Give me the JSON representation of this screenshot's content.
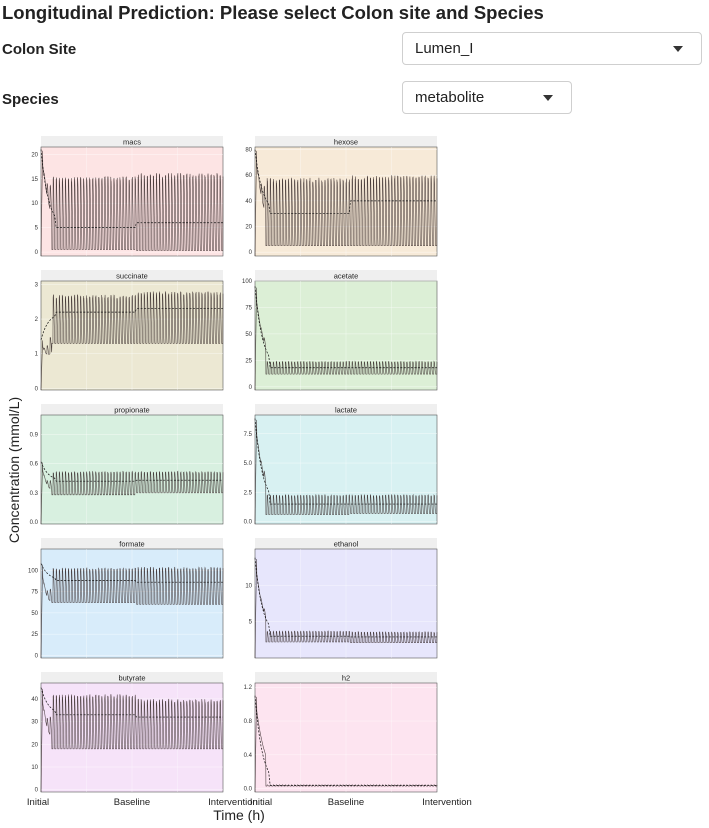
{
  "header": {
    "title": "Longitudinal Prediction: Please select Colon site and Species"
  },
  "controls": {
    "colon_site": {
      "label": "Colon Site",
      "value": "Lumen_I"
    },
    "species": {
      "label": "Species",
      "value": "metabolite"
    }
  },
  "chart_data": {
    "type": "line",
    "facet_layout": "5 rows x 2 columns",
    "ylabel": "Concentration (mmol/L)",
    "xlabel": "Time (h)",
    "x_ticks": [
      "Initial",
      "Baseline",
      "Intervention"
    ],
    "grid": true,
    "panels": [
      {
        "name": "macs",
        "bg": "#fde4e4",
        "yticks": [
          "0",
          "5",
          "10",
          "15",
          "20"
        ],
        "ylim": [
          -0.8,
          21.5
        ],
        "profile": {
          "init_peak": 21,
          "pre_high": 15.5,
          "pre_low": 0.5,
          "pre_mid": 5,
          "post_high": 16.2,
          "post_low": 0.3,
          "post_mid": 6
        }
      },
      {
        "name": "hexose",
        "bg": "#f7ead8",
        "yticks": [
          "0",
          "20",
          "40",
          "60",
          "80"
        ],
        "ylim": [
          -3,
          82
        ],
        "profile": {
          "init_peak": 80,
          "pre_high": 58,
          "pre_low": 5,
          "pre_mid": 30,
          "post_high": 60,
          "post_low": 5,
          "post_mid": 40
        }
      },
      {
        "name": "succinate",
        "bg": "#ece8d3",
        "yticks": [
          "0",
          "1",
          "2",
          "3"
        ],
        "ylim": [
          -0.05,
          3.1
        ],
        "profile": {
          "init_peak": 1.4,
          "pre_high": 2.7,
          "pre_low": 1.3,
          "pre_mid": 2.2,
          "post_high": 2.8,
          "post_low": 1.3,
          "post_mid": 2.3
        }
      },
      {
        "name": "acetate",
        "bg": "#dcefd6",
        "yticks": [
          "0",
          "25",
          "50",
          "75",
          "100"
        ],
        "ylim": [
          -3,
          100
        ],
        "profile": {
          "init_peak": 95,
          "pre_high": 24,
          "pre_low": 12,
          "pre_mid": 18,
          "post_high": 24,
          "post_low": 12,
          "post_mid": 18
        }
      },
      {
        "name": "propionate",
        "bg": "#d8f0e0",
        "yticks": [
          "0.0",
          "0.3",
          "0.6",
          "0.9"
        ],
        "ylim": [
          -0.02,
          1.1
        ],
        "profile": {
          "init_peak": 0.62,
          "pre_high": 0.52,
          "pre_low": 0.28,
          "pre_mid": 0.42,
          "post_high": 0.52,
          "post_low": 0.3,
          "post_mid": 0.43
        }
      },
      {
        "name": "lactate",
        "bg": "#d8f1f2",
        "yticks": [
          "0.0",
          "2.5",
          "5.0",
          "7.5"
        ],
        "ylim": [
          -0.2,
          9.1
        ],
        "profile": {
          "init_peak": 8.8,
          "pre_high": 2.3,
          "pre_low": 0.6,
          "pre_mid": 1.5,
          "post_high": 2.3,
          "post_low": 0.7,
          "post_mid": 1.5
        }
      },
      {
        "name": "formate",
        "bg": "#d8ecfa",
        "yticks": [
          "0",
          "25",
          "50",
          "75",
          "100"
        ],
        "ylim": [
          -3,
          125
        ],
        "profile": {
          "init_peak": 108,
          "pre_high": 103,
          "pre_low": 62,
          "pre_mid": 88,
          "post_high": 104,
          "post_low": 60,
          "post_mid": 86
        }
      },
      {
        "name": "ethanol",
        "bg": "#e7e6fc",
        "yticks": [
          "5",
          "10"
        ],
        "ylim": [
          0,
          15
        ],
        "profile": {
          "init_peak": 13.8,
          "pre_high": 3.7,
          "pre_low": 2.2,
          "pre_mid": 3.0,
          "post_high": 3.6,
          "post_low": 2.1,
          "post_mid": 2.9
        }
      },
      {
        "name": "butyrate",
        "bg": "#f6e3f9",
        "yticks": [
          "0",
          "10",
          "20",
          "30",
          "40"
        ],
        "ylim": [
          -1,
          47
        ],
        "profile": {
          "init_peak": 45,
          "pre_high": 42,
          "pre_low": 18,
          "pre_mid": 33,
          "post_high": 40,
          "post_low": 18,
          "post_mid": 32
        }
      },
      {
        "name": "h2",
        "bg": "#fde4f0",
        "yticks": [
          "0.0",
          "0.4",
          "0.8",
          "1.2"
        ],
        "ylim": [
          -0.04,
          1.25
        ],
        "profile": {
          "init_peak": 1.1,
          "pre_high": 0.045,
          "pre_low": 0.03,
          "pre_mid": 0.038,
          "post_high": 0.045,
          "post_low": 0.03,
          "post_mid": 0.038
        }
      }
    ]
  }
}
